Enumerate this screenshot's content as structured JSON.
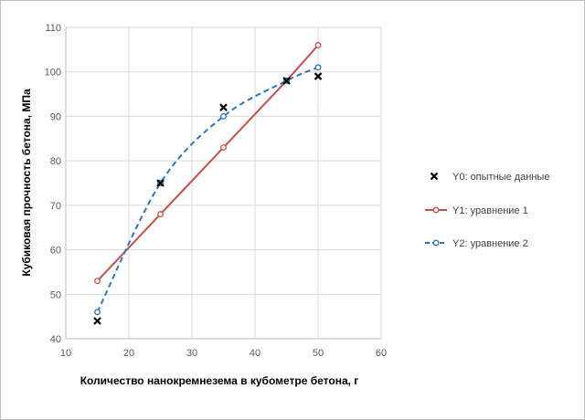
{
  "chart_data": {
    "type": "line",
    "xlabel": "Количество нанокремнезема в кубометре бетона, г",
    "ylabel": "Кубиковая прочность бетона, МПа",
    "xlim": [
      10,
      60
    ],
    "ylim": [
      40,
      110
    ],
    "xticks": [
      10,
      20,
      30,
      40,
      50,
      60
    ],
    "yticks": [
      40,
      50,
      60,
      70,
      80,
      90,
      100,
      110
    ],
    "grid": true,
    "legend_position": "right",
    "series": [
      {
        "name": "Y0:  опытные данные",
        "style": "markers",
        "marker": "x",
        "color": "#000000",
        "x": [
          15,
          25,
          35,
          45,
          50
        ],
        "y": [
          44,
          75,
          92,
          98,
          99
        ]
      },
      {
        "name": "Y1:  уравнение 1",
        "style": "solid-line",
        "marker": "circle-open",
        "color": "#c0504d",
        "x": [
          15,
          25,
          35,
          45,
          50
        ],
        "y": [
          53,
          68,
          83,
          98,
          106
        ]
      },
      {
        "name": "Y2:  уравнение 2",
        "style": "dashed-smooth",
        "marker": "circle-open",
        "color": "#2e75b6",
        "x": [
          15,
          25,
          35,
          45,
          50
        ],
        "y": [
          46,
          75,
          90,
          98,
          101
        ]
      }
    ]
  }
}
